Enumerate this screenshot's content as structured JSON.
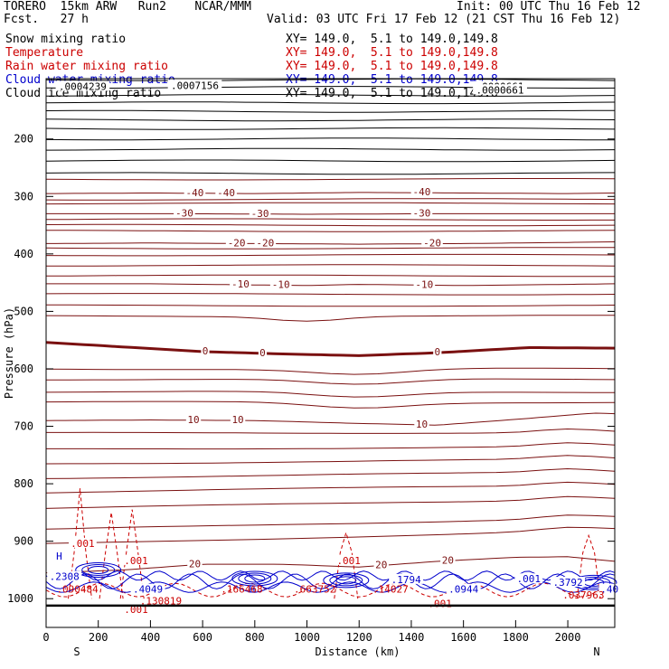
{
  "header": {
    "model": "TORERO  15km ARW   Run2    NCAR/MMM",
    "forecast": "Fcst.   27 h",
    "init": "Init: 00 UTC Thu 16 Feb 12",
    "valid": "Valid: 03 UTC Fri 17 Feb 12 (21 CST Thu 16 Feb 12)"
  },
  "legend": [
    {
      "name": "Snow mixing ratio",
      "xy": "XY= 149.0,  5.1 to 149.0,149.8",
      "color": "#000000"
    },
    {
      "name": "Temperature",
      "xy": "XY= 149.0,  5.1 to 149.0,149.8",
      "color": "#cc0000"
    },
    {
      "name": "Rain water mixing ratio",
      "xy": "XY= 149.0,  5.1 to 149.0,149.8",
      "color": "#cc0000"
    },
    {
      "name": "Cloud water mixing ratio",
      "xy": "XY= 149.0,  5.1 to 149.0,149.8",
      "color": "#0000cc"
    },
    {
      "name": "Cloud ice mixing ratio",
      "xy": "XY= 149.0,  5.1 to 149.0,149.8",
      "color": "#000000"
    }
  ],
  "chart_data": {
    "type": "line",
    "subtype": "vertical cross-section",
    "xlabel": "Distance (km)",
    "ylabel": "Pressure (hPa)",
    "xlim": [
      0,
      2180
    ],
    "ylim": [
      1050,
      95
    ],
    "x_ticks": [
      0,
      200,
      400,
      600,
      800,
      1000,
      1200,
      1400,
      1600,
      1800,
      2000
    ],
    "y_ticks": [
      200,
      300,
      400,
      500,
      600,
      700,
      800,
      900,
      1000
    ],
    "end_labels": {
      "left": "S",
      "right": "N"
    },
    "surface_pressure": 1012,
    "temperature_contours": [
      {
        "label": "-40",
        "x": [
          0,
          400,
          800,
          1200,
          1600,
          2000,
          2180
        ],
        "y": [
          295,
          294,
          295,
          293,
          294,
          295,
          294
        ],
        "labels_at": [
          570,
          690,
          1440
        ]
      },
      {
        "label": "-30",
        "x": [
          0,
          500,
          1000,
          1500,
          2180
        ],
        "y": [
          330,
          330,
          331,
          330,
          330
        ],
        "labels_at": [
          530,
          820,
          1440
        ]
      },
      {
        "label": "-20",
        "x": [
          0,
          400,
          800,
          1200,
          1600,
          2000,
          2180
        ],
        "y": [
          382,
          381,
          382,
          383,
          382,
          380,
          379
        ],
        "labels_at": [
          730,
          840,
          1480
        ]
      },
      {
        "label": "-10",
        "x": [
          0,
          400,
          800,
          1000,
          1200,
          1600,
          2000,
          2180
        ],
        "y": [
          452,
          452,
          454,
          455,
          453,
          455,
          453,
          452
        ],
        "labels_at": [
          745,
          900,
          1450
        ]
      },
      {
        "label": "0",
        "bold": true,
        "x": [
          0,
          300,
          600,
          900,
          1200,
          1500,
          1850,
          2180
        ],
        "y": [
          554,
          562,
          570,
          574,
          577,
          572,
          563,
          564
        ],
        "labels_at": [
          610,
          830,
          1500
        ]
      },
      {
        "label": "10",
        "x": [
          0,
          400,
          800,
          1200,
          1500,
          1800,
          2100,
          2180
        ],
        "y": [
          690,
          689,
          690,
          695,
          698,
          688,
          677,
          678
        ],
        "labels_at": [
          565,
          735,
          1440
        ]
      },
      {
        "label": "20",
        "x": [
          0,
          300,
          600,
          900,
          1200,
          1500,
          1800,
          2000,
          2180
        ],
        "y": [
          955,
          950,
          940,
          940,
          945,
          935,
          928,
          927,
          935
        ],
        "labels_at": [
          570,
          1285,
          1540
        ]
      }
    ],
    "rain_labels": [
      ".001",
      ".001",
      ".001",
      ".001",
      ".001"
    ],
    "cloud_labels": [
      "H",
      "H",
      "H",
      "H",
      "H",
      ".2308",
      ".4049",
      ".1794",
      ".0944",
      ".001",
      ".3792",
      ".40"
    ],
    "snow_ice_labels": [
      ".0004239",
      ".0007156",
      ".0000661",
      ".0000661"
    ],
    "max_labels": [
      ".090484",
      ".130819",
      ".166468",
      ".663752",
      ".14027",
      ".037963"
    ]
  }
}
